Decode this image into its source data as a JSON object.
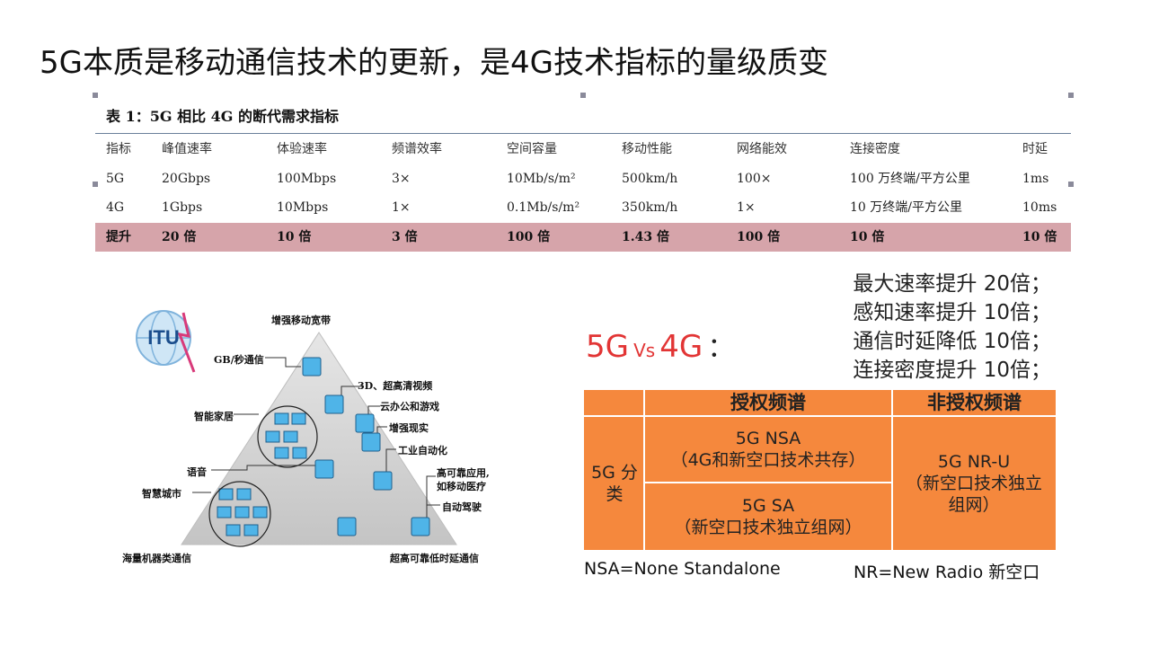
{
  "title": "5G本质是移动通信技术的更新，是4G技术指标的量级质变",
  "spec_table": {
    "caption": "表 1：5G 相比 4G 的断代需求指标",
    "headers": [
      "指标",
      "峰值速率",
      "体验速率",
      "频谱效率",
      "空间容量",
      "移动性能",
      "网络能效",
      "连接密度",
      "时延"
    ],
    "rows": [
      [
        "5G",
        "20Gbps",
        "100Mbps",
        "3×",
        "10Mb/s/m²",
        "500km/h",
        "100×",
        "100 万终端/平方公里",
        "1ms"
      ],
      [
        "4G",
        "1Gbps",
        "10Mbps",
        "1×",
        "0.1Mb/s/m²",
        "350km/h",
        "1×",
        "10 万终端/平方公里",
        "10ms"
      ],
      [
        "提升",
        "20 倍",
        "10 倍",
        "3 倍",
        "100 倍",
        "1.43 倍",
        "100 倍",
        "10 倍",
        "10 倍"
      ]
    ]
  },
  "pyramid": {
    "logo_text": "ITU",
    "top_label": "增强移动宽带",
    "bottom_left_label": "海量机器类通信",
    "bottom_right_label": "超高可靠低时延通信",
    "labels": {
      "gb": "GB/秒通信",
      "hd": "3D、超高清视频",
      "cloud": "云办公和游戏",
      "ar": "增强现实",
      "home": "智能家居",
      "industry": "工业自动化",
      "voice": "语音",
      "reliable1": "高可靠应用,",
      "reliable2": "如移动医疗",
      "city": "智慧城市",
      "driving": "自动驾驶"
    }
  },
  "vs": {
    "left": "5G",
    "mid": "Vs",
    "right": "4G",
    "colon": "："
  },
  "improvements": [
    "最大速率提升  20倍；",
    "感知速率提升  10倍；",
    "通信时延降低  10倍；",
    "连接密度提升  10倍；"
  ],
  "class_table": {
    "head_licensed": "授权频谱",
    "head_unlicensed": "非授权频谱",
    "row_label": "5G 分类",
    "nsa_title": "5G NSA",
    "nsa_desc": "（4G和新空口技术共存）",
    "sa_title": "5G SA",
    "sa_desc": "（新空口技术独立组网）",
    "nru_title": "5G NR-U",
    "nru_desc": "（新空口技术独立组网）"
  },
  "footnote_left": "NSA=None Standalone",
  "footnote_right": "NR=New Radio 新空口",
  "colors": {
    "accent_red": "#e23535",
    "table_orange": "#f5883d",
    "highlight_row": "#d6a4aa"
  }
}
